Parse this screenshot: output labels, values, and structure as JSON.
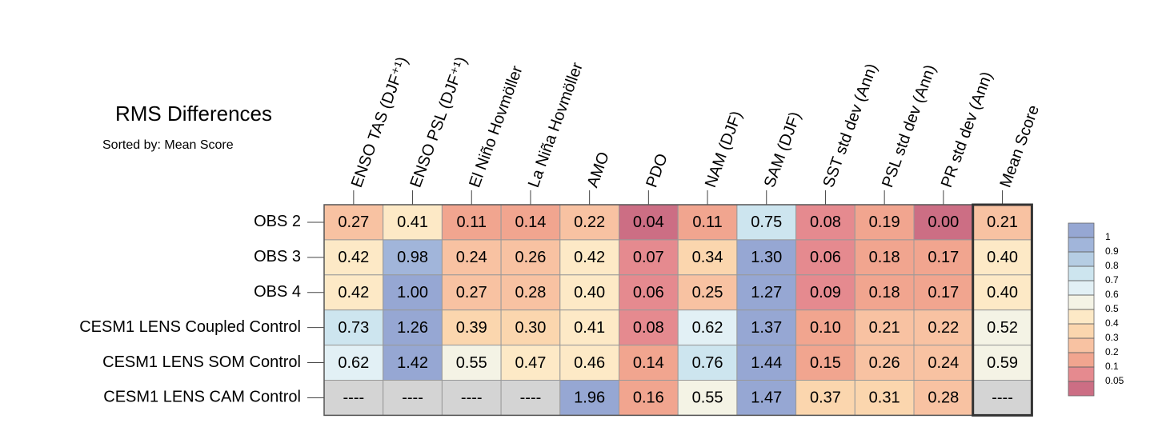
{
  "chart_data": {
    "type": "heatmap",
    "title": "RMS Differences",
    "subtitle": "Sorted by: Mean Score",
    "columns": [
      "ENSO TAS (DJF⁺¹)",
      "ENSO PSL (DJF⁺¹)",
      "El Niño Hovmöller",
      "La Niña Hovmöller",
      "AMO",
      "PDO",
      "NAM (DJF)",
      "SAM (DJF)",
      "SST std dev (Ann)",
      "PSL std dev (Ann)",
      "PR std dev (Ann)",
      "Mean Score"
    ],
    "rows": [
      "OBS 2",
      "OBS 3",
      "OBS 4",
      "CESM1 LENS Coupled Control",
      "CESM1 LENS SOM Control",
      "CESM1 LENS CAM Control"
    ],
    "values": [
      [
        0.27,
        0.41,
        0.11,
        0.14,
        0.22,
        0.04,
        0.11,
        0.75,
        0.08,
        0.19,
        0,
        0.21
      ],
      [
        0.42,
        0.98,
        0.24,
        0.26,
        0.42,
        0.07,
        0.34,
        1.3,
        0.06,
        0.18,
        0.17,
        0.4
      ],
      [
        0.42,
        1,
        0.27,
        0.28,
        0.4,
        0.06,
        0.25,
        1.27,
        0.09,
        0.18,
        0.17,
        0.4
      ],
      [
        0.73,
        1.26,
        0.39,
        0.3,
        0.41,
        0.08,
        0.62,
        1.37,
        0.1,
        0.21,
        0.22,
        0.52
      ],
      [
        0.62,
        1.42,
        0.55,
        0.47,
        0.46,
        0.14,
        0.76,
        1.44,
        0.15,
        0.26,
        0.24,
        0.59
      ],
      [
        null,
        null,
        null,
        null,
        1.96,
        0.16,
        0.55,
        1.47,
        0.37,
        0.31,
        0.28,
        null
      ]
    ],
    "value_labels": [
      [
        "0.27",
        "0.41",
        "0.11",
        "0.14",
        "0.22",
        "0.04",
        "0.11",
        "0.75",
        "0.08",
        "0.19",
        "0.00",
        "0.21"
      ],
      [
        "0.42",
        "0.98",
        "0.24",
        "0.26",
        "0.42",
        "0.07",
        "0.34",
        "1.30",
        "0.06",
        "0.18",
        "0.17",
        "0.40"
      ],
      [
        "0.42",
        "1.00",
        "0.27",
        "0.28",
        "0.40",
        "0.06",
        "0.25",
        "1.27",
        "0.09",
        "0.18",
        "0.17",
        "0.40"
      ],
      [
        "0.73",
        "1.26",
        "0.39",
        "0.30",
        "0.41",
        "0.08",
        "0.62",
        "1.37",
        "0.10",
        "0.21",
        "0.22",
        "0.52"
      ],
      [
        "0.62",
        "1.42",
        "0.55",
        "0.47",
        "0.46",
        "0.14",
        "0.76",
        "1.44",
        "0.15",
        "0.26",
        "0.24",
        "0.59"
      ],
      [
        "----",
        "----",
        "----",
        "----",
        "1.96",
        "0.16",
        "0.55",
        "1.47",
        "0.37",
        "0.31",
        "0.28",
        "----"
      ]
    ],
    "levels": [
      0.05,
      0.1,
      0.2,
      0.3,
      0.4,
      0.5,
      0.6,
      0.7,
      0.8,
      0.9,
      1
    ],
    "colors": [
      "#cc6e84",
      "#e58a8f",
      "#f1a58f",
      "#f8c2a2",
      "#fbd6ae",
      "#fde9c6",
      "#f4f3e5",
      "#e2f0f5",
      "#cde5ef",
      "#b5cde3",
      "#a1b5da",
      "#96a7d3"
    ],
    "missing_color": "#d4d4d4"
  }
}
